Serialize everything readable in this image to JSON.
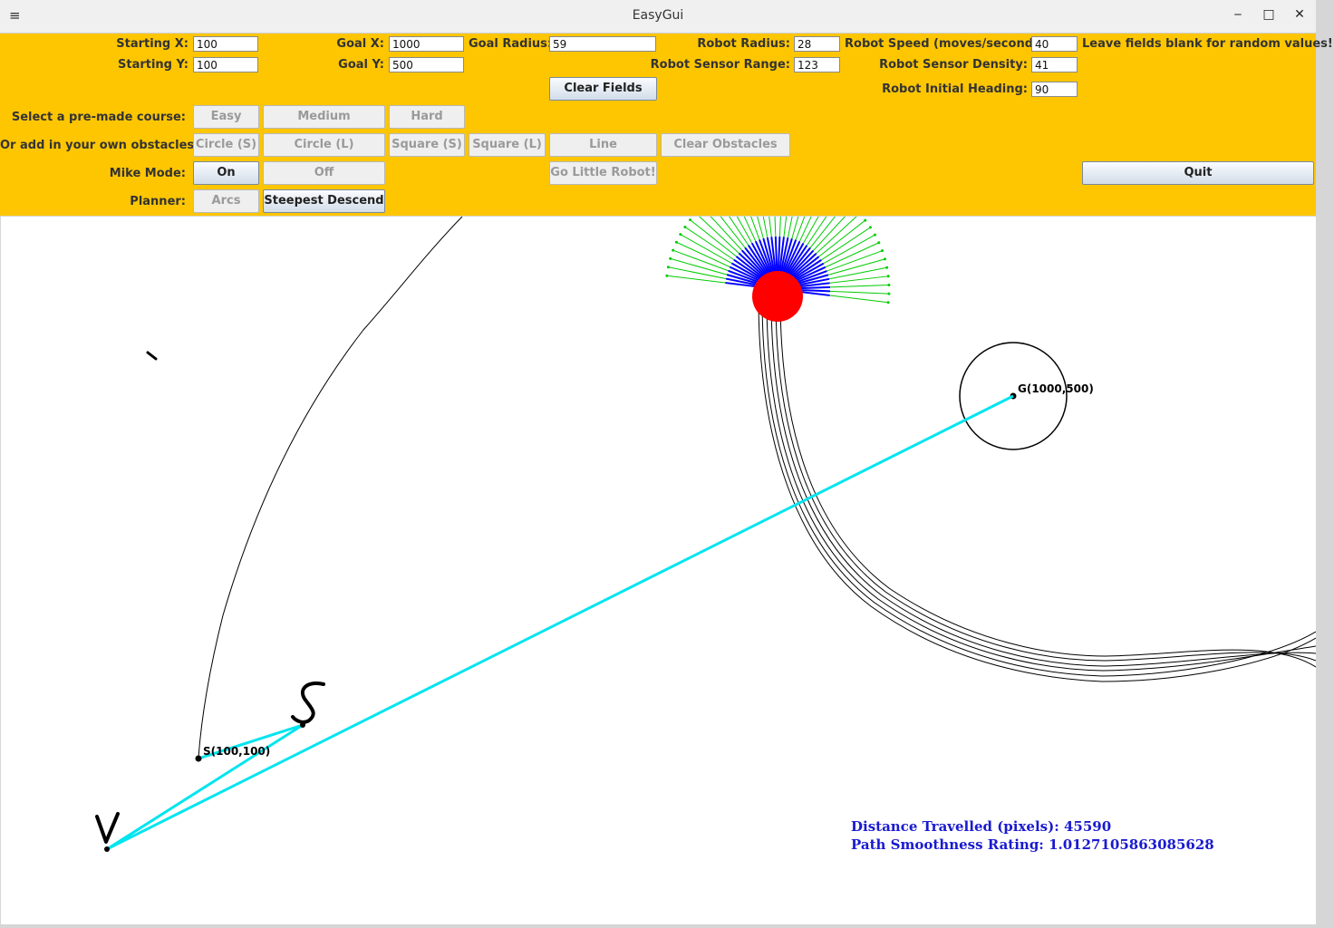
{
  "window": {
    "title": "EasyGui",
    "menu_icon": "≡",
    "minimize": "‒",
    "maximize": "□",
    "close": "✕"
  },
  "fields": {
    "start_x": {
      "label": "Starting X:",
      "value": "100"
    },
    "start_y": {
      "label": "Starting Y:",
      "value": "100"
    },
    "goal_x": {
      "label": "Goal X:",
      "value": "1000"
    },
    "goal_y": {
      "label": "Goal Y:",
      "value": "500"
    },
    "goal_radius": {
      "label": "Goal Radius:",
      "value": "59"
    },
    "robot_radius": {
      "label": "Robot Radius:",
      "value": "28"
    },
    "robot_sensor_range": {
      "label": "Robot Sensor Range:",
      "value": "123"
    },
    "robot_speed": {
      "label": "Robot Speed (moves/second):",
      "value": "40"
    },
    "robot_sensor_density": {
      "label": "Robot Sensor Density:",
      "value": "41"
    },
    "robot_initial_heading": {
      "label": "Robot Initial Heading:",
      "value": "90"
    },
    "hint": "Leave fields blank for random values!"
  },
  "buttons": {
    "clear_fields": "Clear Fields",
    "course_label": "Select a pre-made course:",
    "easy": "Easy",
    "medium": "Medium",
    "hard": "Hard",
    "obstacles_label": "Or add in your own obstacles:",
    "circle_s": "Circle (S)",
    "circle_l": "Circle (L)",
    "square_s": "Square (S)",
    "square_l": "Square (L)",
    "line": "Line",
    "clear_obstacles": "Clear Obstacles",
    "mike_label": "Mike Mode:",
    "on": "On",
    "off": "Off",
    "go": "Go Little Robot!",
    "quit": "Quit",
    "planner_label": "Planner:",
    "arcs": "Arcs",
    "steepest": "Steepest Descend"
  },
  "canvas": {
    "start_label": "S(100,100)",
    "goal_label": "G(1000,500)",
    "distance": "Distance Travelled (pixels): 45590",
    "smoothness": "Path Smoothness Rating: 1.0127105863085628",
    "colors": {
      "path": "#00e5ee",
      "robot": "#ff0000",
      "sensor_near": "#0000ff",
      "sensor_far": "#00cc00",
      "stats": "#1a1ad0",
      "panel": "#fec601"
    }
  }
}
